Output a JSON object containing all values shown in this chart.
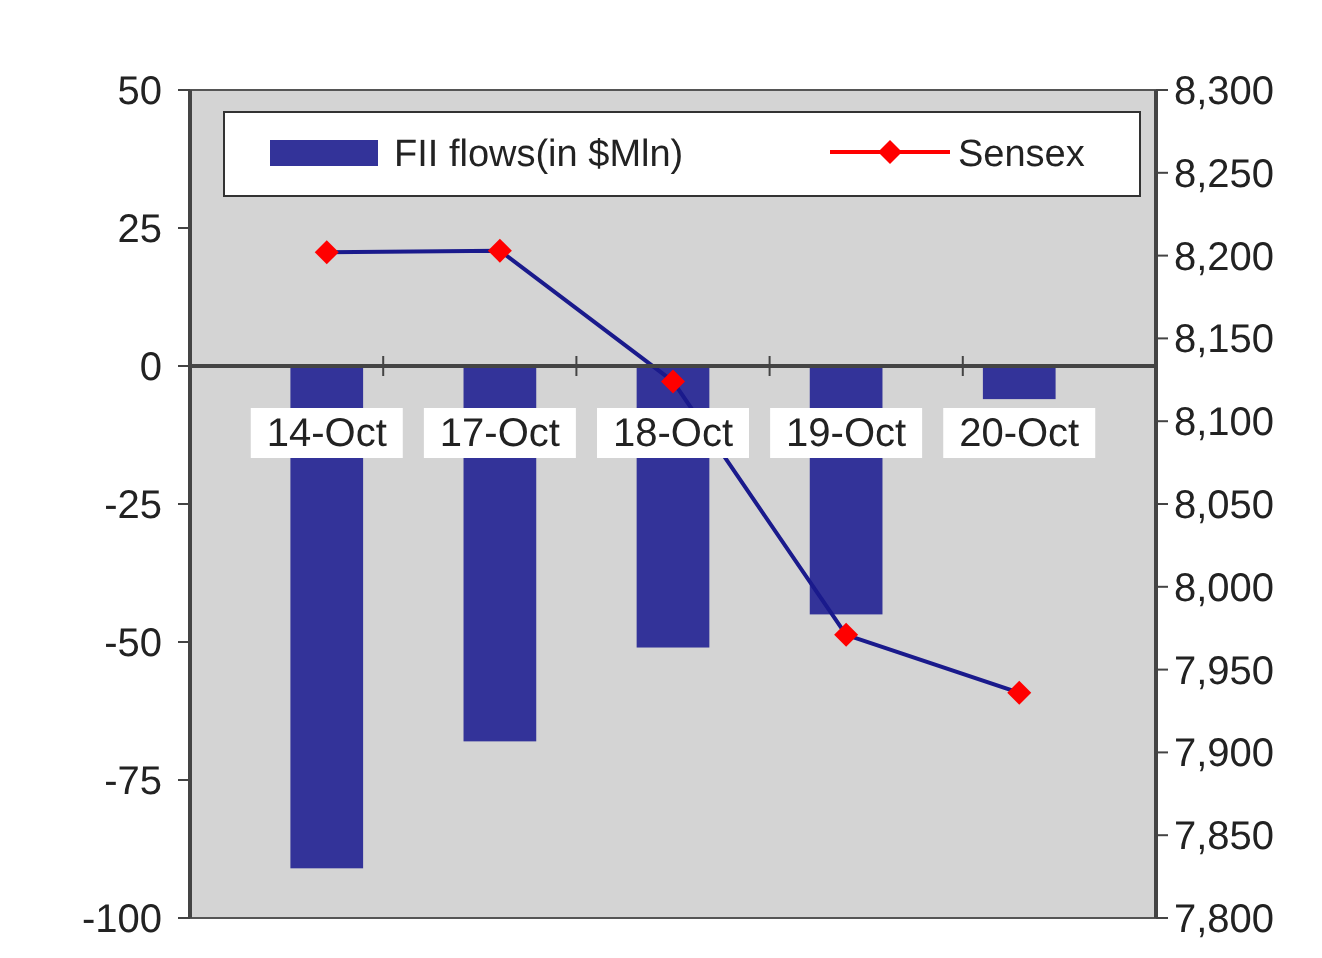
{
  "chart_data": {
    "type": "bar",
    "categories": [
      "14-Oct",
      "17-Oct",
      "18-Oct",
      "19-Oct",
      "20-Oct"
    ],
    "series": [
      {
        "name": "FII flows(in $Mln)",
        "color": "#333399",
        "values": [
          -91,
          -68,
          -51,
          -45,
          -6
        ]
      },
      {
        "name": "Sensex",
        "type": "line",
        "axis": "y2",
        "color": "#ff0000",
        "marker": "diamond",
        "values": [
          8202,
          8203,
          8124,
          7971,
          7936
        ]
      }
    ],
    "ylim": [
      -100,
      50
    ],
    "yticks": [
      -100,
      -75,
      -50,
      -25,
      0,
      25,
      50
    ],
    "y2lim": [
      7800,
      8300
    ],
    "y2ticks": [
      {
        "value": 7800,
        "label": "7,800"
      },
      {
        "value": 7850,
        "label": "7,850"
      },
      {
        "value": 7900,
        "label": "7,900"
      },
      {
        "value": 7950,
        "label": "7,950"
      },
      {
        "value": 8000,
        "label": "8,000"
      },
      {
        "value": 8050,
        "label": "8,050"
      },
      {
        "value": 8100,
        "label": "8,100"
      },
      {
        "value": 8150,
        "label": "8,150"
      },
      {
        "value": 8200,
        "label": "8,200"
      },
      {
        "value": 8250,
        "label": "8,250"
      },
      {
        "value": 8300,
        "label": "8,300"
      }
    ],
    "legend": "top",
    "grid": false
  }
}
